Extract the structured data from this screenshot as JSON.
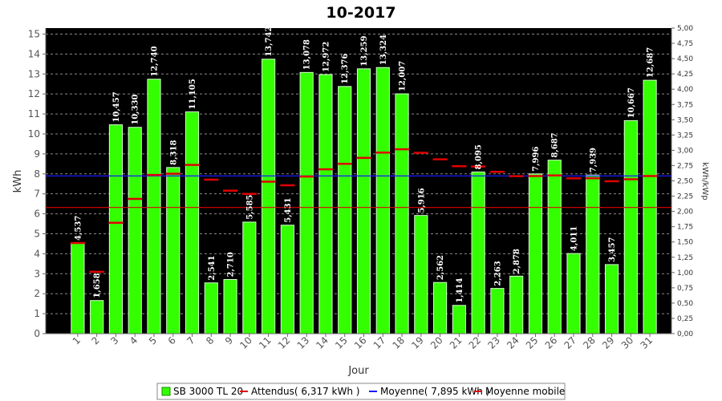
{
  "chart_data": {
    "type": "bar",
    "title": "10-2017",
    "xlabel": "Jour",
    "ylabel": "kWh",
    "y2label": "kWh/kWp",
    "ylim": [
      0,
      15.3
    ],
    "y2lim": [
      0,
      5.0
    ],
    "yticks": [
      "0",
      "1",
      "2",
      "3",
      "4",
      "5",
      "6",
      "7",
      "8",
      "9",
      "10",
      "11",
      "12",
      "13",
      "14",
      "15"
    ],
    "y2ticks": [
      "0,00",
      "0,25",
      "0,50",
      "0,75",
      "1,00",
      "1,25",
      "1,50",
      "1,75",
      "2,00",
      "2,25",
      "2,50",
      "2,75",
      "3,00",
      "3,25",
      "3,50",
      "3,75",
      "4,00",
      "4,25",
      "4,50",
      "4,75",
      "5,00"
    ],
    "categories": [
      "1",
      "2",
      "3",
      "4",
      "5",
      "6",
      "7",
      "8",
      "9",
      "10",
      "11",
      "12",
      "13",
      "14",
      "15",
      "16",
      "17",
      "18",
      "19",
      "20",
      "21",
      "22",
      "23",
      "24",
      "25",
      "26",
      "27",
      "28",
      "29",
      "30",
      "31"
    ],
    "series": [
      {
        "name": "SB 3000 TL 20",
        "kind": "bar",
        "color": "#33ff00",
        "values": [
          4.537,
          1.658,
          10.457,
          10.33,
          12.74,
          8.318,
          11.105,
          2.541,
          2.71,
          5.585,
          13.742,
          5.431,
          13.078,
          12.972,
          12.376,
          13.259,
          13.324,
          12.007,
          5.916,
          2.562,
          1.414,
          8.095,
          2.263,
          2.878,
          7.996,
          8.687,
          4.011,
          7.939,
          3.457,
          10.667,
          12.687
        ],
        "labels": [
          "4,537",
          "1,658",
          "10,457",
          "10,330",
          "12,740",
          "8,318",
          "11,105",
          "2,541",
          "2,710",
          "5,585",
          "13,742",
          "5,431",
          "13,078",
          "12,972",
          "12,376",
          "13,259",
          "13,324",
          "12,007",
          "5,916",
          "2,562",
          "1,414",
          "8,095",
          "2,263",
          "2,878",
          "7,996",
          "8,687",
          "4,011",
          "7,939",
          "3,457",
          "10,667",
          "12,687"
        ]
      },
      {
        "name": "Attendus( 6,317 kWh )",
        "kind": "hline",
        "color": "#e00000",
        "value": 6.317
      },
      {
        "name": "Moyenne( 7,895 kWh )",
        "kind": "hline",
        "color": "#1a1aff",
        "value": 7.895
      },
      {
        "name": "Moyenne mobile",
        "kind": "marker",
        "color": "#e00000",
        "values": [
          4.537,
          3.098,
          5.551,
          6.746,
          7.944,
          8.007,
          8.45,
          7.712,
          7.156,
          6.999,
          7.612,
          7.431,
          7.865,
          8.229,
          8.505,
          8.802,
          9.067,
          9.23,
          9.055,
          8.73,
          8.382,
          8.369,
          8.104,
          7.886,
          7.89,
          7.92,
          7.775,
          7.781,
          7.632,
          7.731,
          7.891
        ]
      }
    ],
    "legend": {
      "position": "bottom",
      "items": [
        {
          "label": "SB 3000 TL 20",
          "color": "#33ff00",
          "shape": "box"
        },
        {
          "label": "Attendus( 6,317 kWh )",
          "color": "#e00000",
          "shape": "line"
        },
        {
          "label": "Moyenne( 7,895 kWh )",
          "color": "#1a1aff",
          "shape": "line"
        },
        {
          "label": "Moyenne mobile",
          "color": "#e00000",
          "shape": "line"
        }
      ]
    },
    "grid": true,
    "background": "#000000"
  }
}
